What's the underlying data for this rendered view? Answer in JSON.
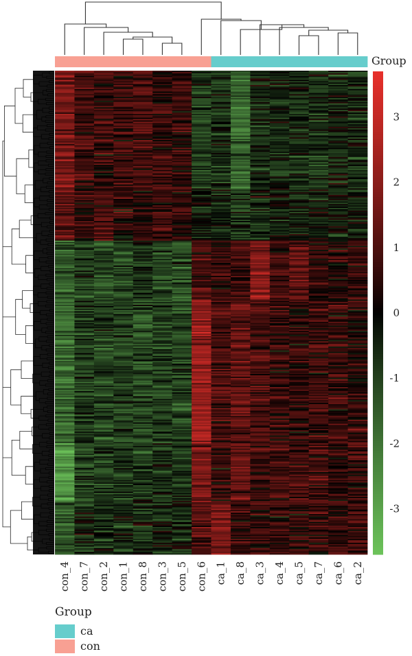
{
  "chart_data": {
    "type": "heatmap",
    "columns": [
      "con_4",
      "con_7",
      "con_2",
      "con_1",
      "con_8",
      "con_3",
      "con_5",
      "con_6",
      "ca_1",
      "ca_8",
      "ca_3",
      "ca_4",
      "ca_5",
      "ca_7",
      "ca_6",
      "ca_2"
    ],
    "column_group": [
      "con",
      "con",
      "con",
      "con",
      "con",
      "con",
      "con",
      "con",
      "ca",
      "ca",
      "ca",
      "ca",
      "ca",
      "ca",
      "ca",
      "ca"
    ],
    "annotation_title": "Group",
    "legend": {
      "title": "Group",
      "items": [
        {
          "label": "ca",
          "color": "#66CDCC"
        },
        {
          "label": "con",
          "color": "#F8A093"
        }
      ]
    },
    "colorbar": {
      "ticks": [
        "3",
        "2",
        "1",
        "0",
        "-1",
        "-2",
        "-3"
      ],
      "tick_values": [
        3,
        2,
        1,
        0,
        -1,
        -2,
        -3
      ],
      "range": [
        -3.7,
        3.7
      ],
      "low_color": "#6CC35A",
      "mid_color": "#000000",
      "high_color": "#E8302B"
    },
    "row_blocks": [
      {
        "rows": 90,
        "means": [
          1.7,
          0.8,
          0.6,
          0.7,
          0.9,
          0.6,
          0.6,
          -1.0,
          -0.7,
          -1.7,
          -0.6,
          -0.5,
          -0.6,
          -0.7,
          -0.4,
          -0.5
        ]
      },
      {
        "rows": 40,
        "means": [
          1.1,
          0.6,
          1.1,
          0.6,
          0.6,
          0.7,
          0.6,
          -0.3,
          -0.3,
          -0.9,
          -0.4,
          -0.4,
          -0.4,
          -0.4,
          -0.3,
          -0.3
        ]
      },
      {
        "rows": 45,
        "means": [
          -1.5,
          -0.9,
          -1.2,
          -1.0,
          -0.8,
          -1.0,
          -1.1,
          0.9,
          0.5,
          0.7,
          1.8,
          0.8,
          1.3,
          0.6,
          0.4,
          0.5
        ]
      },
      {
        "rows": 110,
        "means": [
          -1.8,
          -0.9,
          -1.0,
          -1.0,
          -1.1,
          -1.0,
          -1.0,
          2.2,
          0.9,
          1.3,
          0.9,
          0.7,
          0.6,
          0.7,
          0.6,
          0.5
        ]
      },
      {
        "rows": 45,
        "means": [
          -2.6,
          -1.1,
          -1.0,
          -0.8,
          -0.8,
          -0.6,
          -0.7,
          1.6,
          0.6,
          1.4,
          0.8,
          0.9,
          0.8,
          0.9,
          0.6,
          0.6
        ]
      },
      {
        "rows": 40,
        "means": [
          -1.3,
          -0.6,
          -0.6,
          -0.5,
          -0.5,
          -0.4,
          -0.5,
          1.0,
          1.6,
          0.7,
          0.6,
          0.5,
          0.5,
          0.5,
          0.6,
          0.8
        ]
      }
    ]
  }
}
